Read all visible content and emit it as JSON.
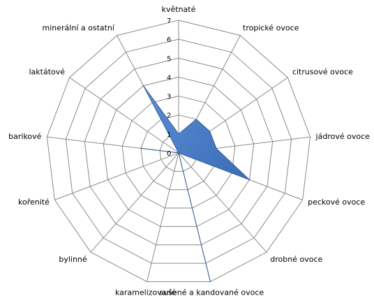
{
  "chart_data": {
    "type": "radar",
    "categories": [
      "květnaté",
      "tropické ovoce",
      "citrusové ovoce",
      "jádrové ovoce",
      "peckové ovoce",
      "drobné ovoce",
      "sušené a kandované ovoce",
      "karamelizované",
      "bylinné",
      "kořenité",
      "barikové",
      "laktátové",
      "minerální a ostatní"
    ],
    "series": [
      {
        "values": [
          1,
          2,
          2,
          2,
          4,
          0,
          7,
          0,
          0,
          0,
          2,
          0,
          4
        ]
      }
    ],
    "rlim": [
      0,
      7
    ],
    "ticks": [
      "0",
      "1",
      "2",
      "3",
      "4",
      "5",
      "6",
      "7"
    ],
    "grid": true,
    "colors": {
      "fill": "#4472c4",
      "stroke": "#3a5f9e",
      "grid": "#8a8a8a"
    }
  }
}
